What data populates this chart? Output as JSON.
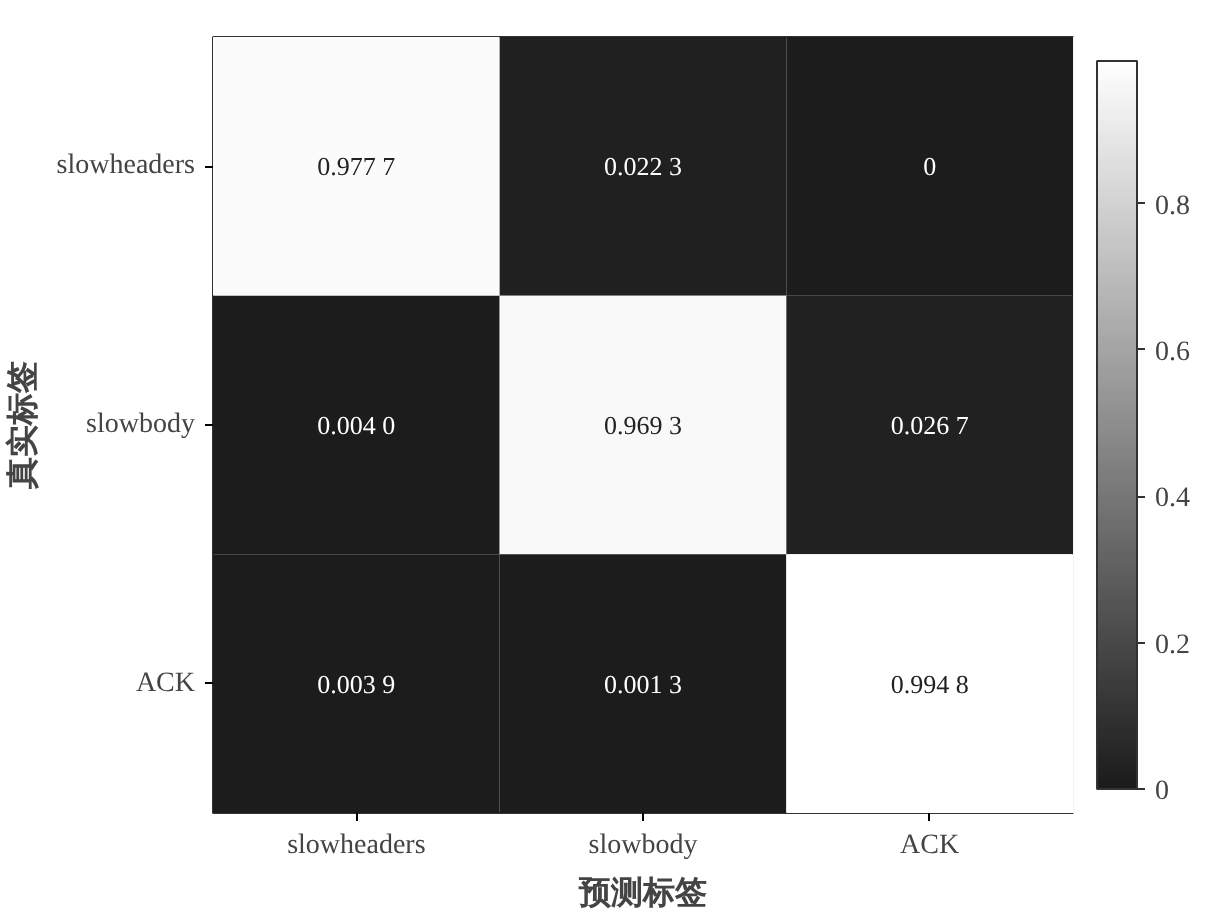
{
  "chart_data": {
    "type": "heatmap",
    "xlabel": "预测标签",
    "ylabel": "真实标签",
    "categories": [
      "slowheaders",
      "slowbody",
      "ACK"
    ],
    "y_categories": [
      "slowheaders",
      "slowbody",
      "ACK"
    ],
    "cells": [
      [
        0.9777,
        0.0223,
        0
      ],
      [
        0.004,
        0.9693,
        0.0267
      ],
      [
        0.0039,
        0.0013,
        0.9948
      ]
    ],
    "cell_labels": [
      [
        "0.977 7",
        "0.022 3",
        "0"
      ],
      [
        "0.004 0",
        "0.969 3",
        "0.026 7"
      ],
      [
        "0.003 9",
        "0.001 3",
        "0.994 8"
      ]
    ],
    "clim": [
      0,
      0.9948
    ],
    "cticks": [
      0,
      0.2,
      0.4,
      0.6,
      0.8
    ]
  }
}
